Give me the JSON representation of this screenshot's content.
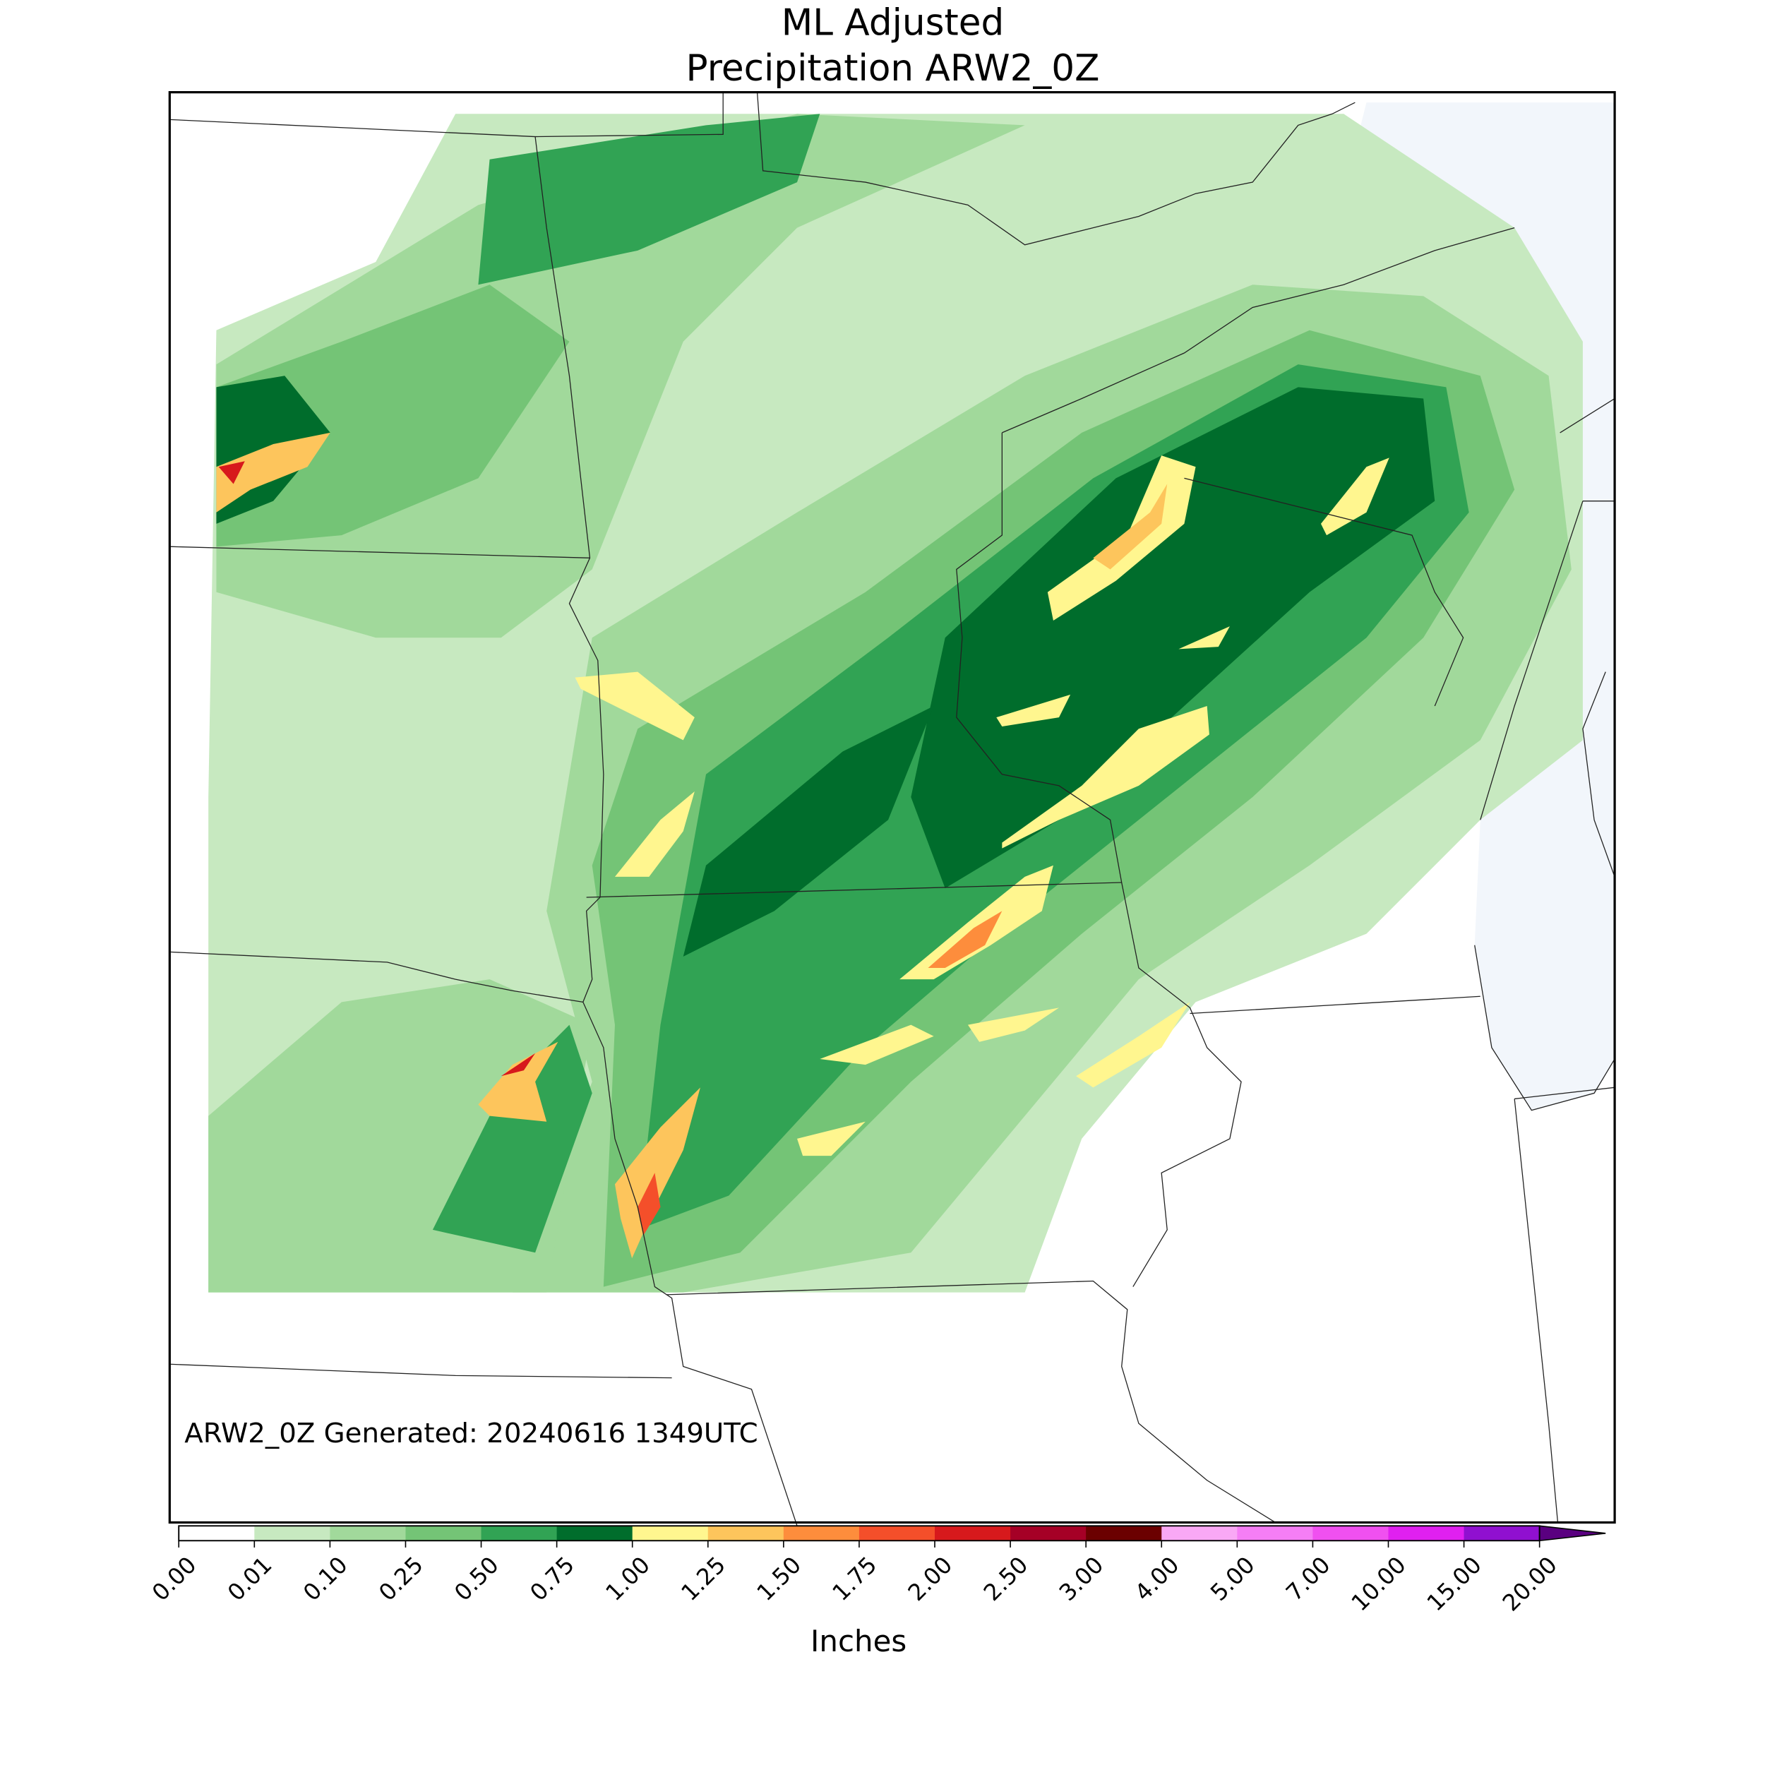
{
  "title": [
    "ML Adjusted",
    "Precipitation ARW2_0Z"
  ],
  "annotation": "ARW2_0Z Generated: 20240616 1349UTC",
  "colorbar": {
    "label": "Inches",
    "ticks": [
      {
        "value": 0,
        "label": "0.00"
      },
      {
        "value": 0.01,
        "label": "0.01"
      },
      {
        "value": 0.1,
        "label": "0.10"
      },
      {
        "value": 0.25,
        "label": "0.25"
      },
      {
        "value": 0.5,
        "label": "0.50"
      },
      {
        "value": 0.75,
        "label": "0.75"
      },
      {
        "value": 1,
        "label": "1.00"
      },
      {
        "value": 1.25,
        "label": "1.25"
      },
      {
        "value": 1.5,
        "label": "1.50"
      },
      {
        "value": 1.75,
        "label": "1.75"
      },
      {
        "value": 2,
        "label": "2.00"
      },
      {
        "value": 2.5,
        "label": "2.50"
      },
      {
        "value": 3,
        "label": "3.00"
      },
      {
        "value": 4,
        "label": "4.00"
      },
      {
        "value": 5,
        "label": "5.00"
      },
      {
        "value": 7,
        "label": "7.00"
      },
      {
        "value": 10,
        "label": "10.00"
      },
      {
        "value": 15,
        "label": "15.00"
      },
      {
        "value": 20,
        "label": "20.00"
      }
    ],
    "colors": [
      "#ffffff",
      "#c7e9c0",
      "#a1d99b",
      "#74c476",
      "#31a354",
      "#006d2c",
      "#fff68f",
      "#fdc55c",
      "#fd8d3c",
      "#f44f2a",
      "#d7191c",
      "#a50026",
      "#6b0000",
      "#f9a8f5",
      "#f57ef5",
      "#f050f0",
      "#e020f0",
      "#9010d0"
    ],
    "extend_color": "#5a0080"
  }
}
